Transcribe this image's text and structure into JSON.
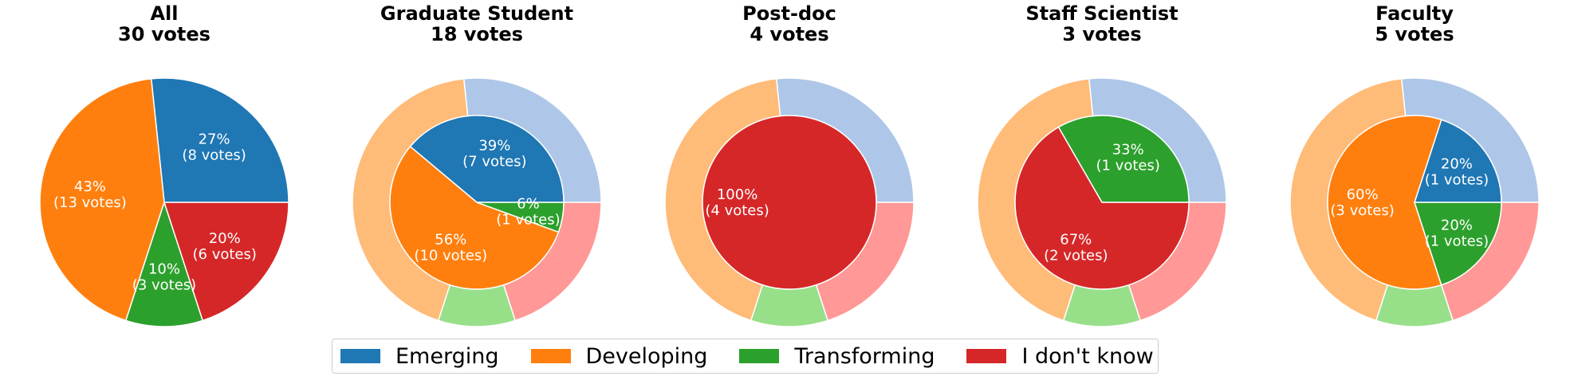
{
  "legend": [
    {
      "label": "Emerging",
      "color": "#1f77b4",
      "light": "#aec7e8"
    },
    {
      "label": "Developing",
      "color": "#ff7f0e",
      "light": "#ffbb78"
    },
    {
      "label": "Transforming",
      "color": "#2ca02c",
      "light": "#98df8a"
    },
    {
      "label": "I don't know",
      "color": "#d62728",
      "light": "#ff9896"
    }
  ],
  "chart_data": [
    {
      "type": "pie",
      "title": "All",
      "subtitle": "30 votes",
      "ring": false,
      "categories": [
        "Emerging",
        "Developing",
        "Transforming",
        "I don't know"
      ],
      "values": [
        8,
        13,
        3,
        6
      ],
      "labels": [
        "27%\n(8 votes)",
        "43%\n(13 votes)",
        "10%\n(3 votes)",
        "20%\n(6 votes)"
      ]
    },
    {
      "type": "pie",
      "title": "Graduate Student",
      "subtitle": "18 votes",
      "ring": true,
      "categories": [
        "Emerging",
        "Developing",
        "Transforming",
        "I don't know"
      ],
      "values": [
        7,
        10,
        1,
        0
      ],
      "labels": [
        "39%\n(7 votes)",
        "56%\n(10 votes)",
        "6%\n(1 votes)",
        ""
      ]
    },
    {
      "type": "pie",
      "title": "Post-doc",
      "subtitle": "4 votes",
      "ring": true,
      "categories": [
        "Emerging",
        "Developing",
        "Transforming",
        "I don't know"
      ],
      "values": [
        0,
        0,
        0,
        4
      ],
      "labels": [
        "",
        "",
        "",
        "100%\n(4 votes)"
      ]
    },
    {
      "type": "pie",
      "title": "Staff Scientist",
      "subtitle": "3 votes",
      "ring": true,
      "categories": [
        "Emerging",
        "Developing",
        "Transforming",
        "I don't know"
      ],
      "values": [
        0,
        0,
        1,
        2
      ],
      "labels": [
        "",
        "",
        "33%\n(1 votes)",
        "67%\n(2 votes)"
      ]
    },
    {
      "type": "pie",
      "title": "Faculty",
      "subtitle": "5 votes",
      "ring": true,
      "categories": [
        "Emerging",
        "Developing",
        "Transforming",
        "I don't know"
      ],
      "values": [
        1,
        3,
        1,
        0
      ],
      "labels": [
        "20%\n(1 votes)",
        "60%\n(3 votes)",
        "20%\n(1 votes)",
        ""
      ]
    }
  ]
}
